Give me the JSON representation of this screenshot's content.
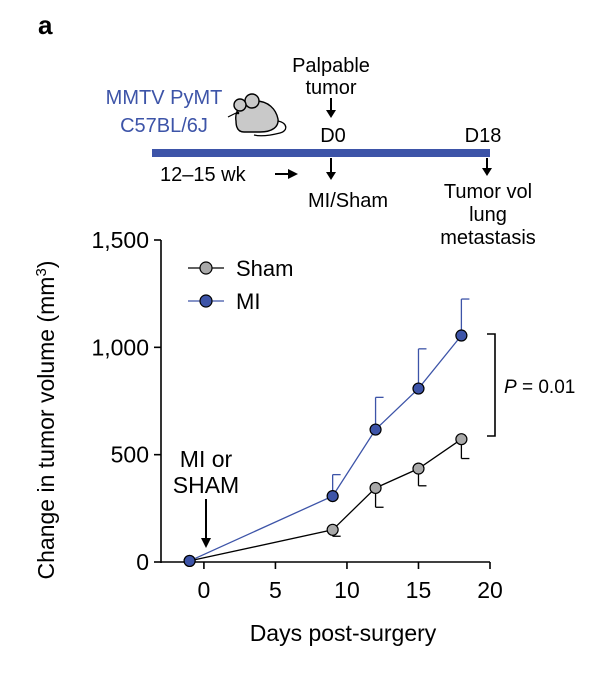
{
  "panel_label": "a",
  "timeline": {
    "model_line1": "MMTV PyMT",
    "model_line2": "C57BL/6J",
    "palpable_line1": "Palpable",
    "palpable_line2": "tumor",
    "d0": "D0",
    "d18": "D18",
    "age": "12–15 wk",
    "mi_sham": "MI/Sham",
    "endpoint_line1": "Tumor vol",
    "endpoint_line2": "lung",
    "endpoint_line3": "metastasis",
    "bar_color": "#3d54a8",
    "model_text_color": "#3d54a8"
  },
  "annotation": {
    "line1": "MI or",
    "line2": "SHAM"
  },
  "significance": {
    "p_label": "P",
    "p_value": "= 0.01"
  },
  "chart_data": {
    "type": "line",
    "xlabel": "Days post-surgery",
    "ylabel": "Change in tumor volume (mm",
    "ylabel_sup": "3",
    "ylabel_close": ")",
    "xlim": [
      -3,
      20
    ],
    "ylim": [
      0,
      1500
    ],
    "xticks": [
      0,
      5,
      10,
      15,
      20
    ],
    "yticks": [
      0,
      500,
      1000,
      1500
    ],
    "ytick_labels": [
      "0",
      "500",
      "1,000",
      "1,500"
    ],
    "legend_position": "top-left",
    "series": [
      {
        "name": "Sham",
        "color": "#000000",
        "marker_fill": "#a9a9a9",
        "x": [
          -1,
          9,
          12,
          15,
          18
        ],
        "y": [
          5,
          150,
          345,
          435,
          572
        ],
        "err": [
          0,
          30,
          90,
          80,
          90
        ]
      },
      {
        "name": "MI",
        "color": "#3d54a8",
        "marker_fill": "#3d54a8",
        "x": [
          -1,
          9,
          12,
          15,
          18
        ],
        "y": [
          5,
          307,
          617,
          808,
          1055
        ],
        "err": [
          0,
          100,
          150,
          185,
          170
        ]
      }
    ]
  }
}
